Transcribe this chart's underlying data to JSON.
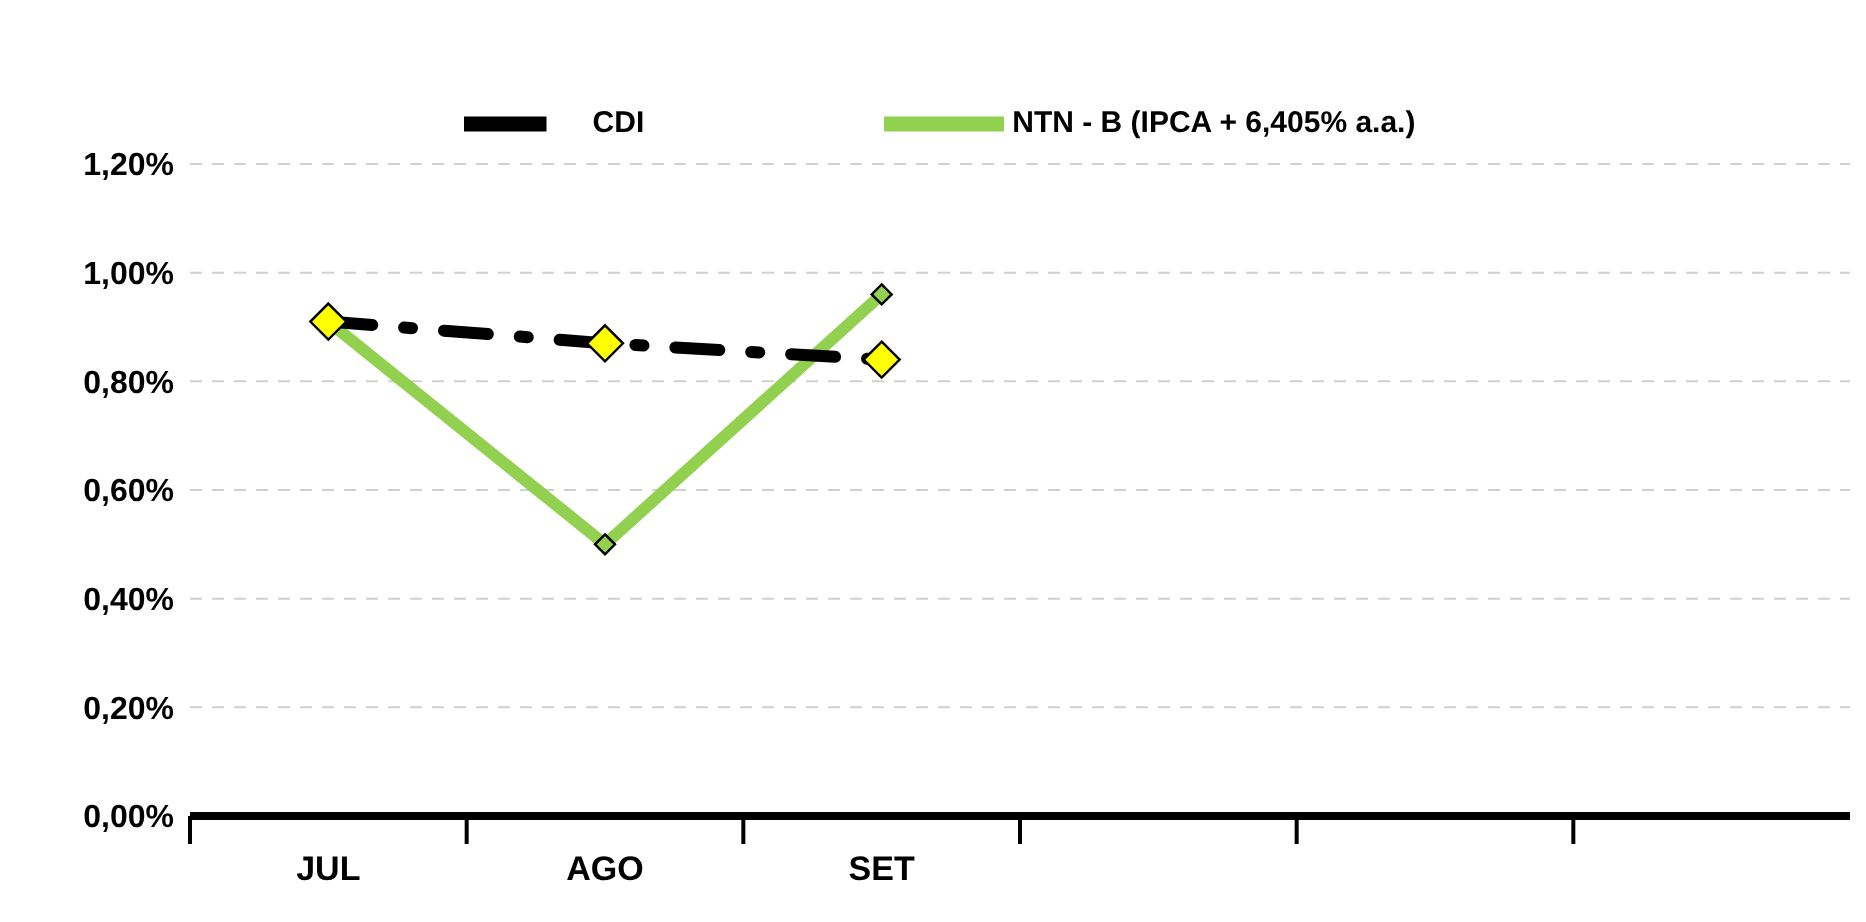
{
  "chart_data": {
    "type": "line",
    "categories": [
      "JUL",
      "AGO",
      "SET",
      null,
      null,
      null
    ],
    "series": [
      {
        "name": "NTN - B  (IPCA + 6,405% a.a.)",
        "color": "#92d050",
        "values": [
          0.91,
          0.5,
          0.96,
          null,
          null,
          null
        ],
        "marker": "diamond",
        "line_style": "solid"
      },
      {
        "name": "CDI",
        "color": "#000000",
        "values": [
          0.91,
          0.87,
          0.84,
          null,
          null,
          null
        ],
        "marker": "diamond",
        "line_style": "dashed"
      }
    ],
    "ylim": [
      0,
      1.2
    ],
    "yticks": [
      {
        "value": 0,
        "label": "0,00%"
      },
      {
        "value": 0.2,
        "label": "0,20%"
      },
      {
        "value": 0.4,
        "label": "0,40%"
      },
      {
        "value": 0.6,
        "label": "0,60%"
      },
      {
        "value": 0.8,
        "label": "0,80%"
      },
      {
        "value": 1,
        "label": "1,00%"
      },
      {
        "value": 1.2,
        "label": "1,20%"
      }
    ],
    "grid": "y",
    "legend": "top"
  }
}
